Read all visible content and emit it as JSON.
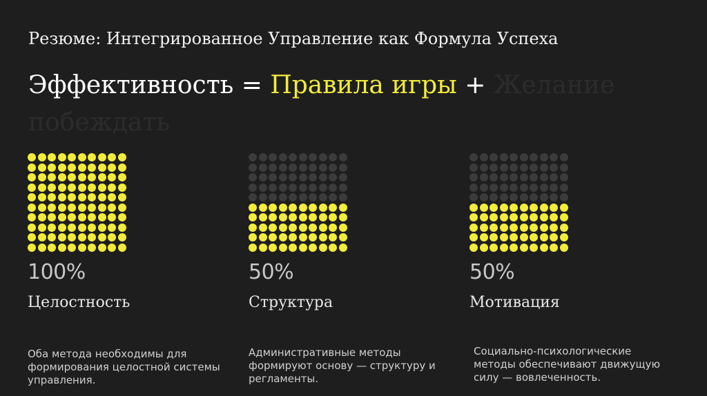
{
  "slide": {
    "heading": "Резюме: Интегрированное Управление как Формула Успеха",
    "formula": {
      "term": "Эффективность",
      "equals": "=",
      "accent_term": "Правила игры",
      "plus": "+",
      "faded_term": "Желание побеждать"
    }
  },
  "metrics": [
    {
      "percent_label": "100%",
      "filled_fraction": 1.0,
      "title": "Целостность",
      "description": "Оба метода необходимы для формирования целостной системы управления."
    },
    {
      "percent_label": "50%",
      "filled_fraction": 0.5,
      "title": "Структура",
      "description": "Административные методы формируют основу — структуру и регламенты."
    },
    {
      "percent_label": "50%",
      "filled_fraction": 0.5,
      "title": "Мотивация",
      "description": "Социально-психологические методы обеспечивают движущую силу — вовлеченность."
    }
  ],
  "colors": {
    "background": "#1e1e1e",
    "accent_yellow": "#f2ec3a",
    "dot_inactive": "#3b3b3b",
    "faded_text": "#2c2c2c"
  }
}
